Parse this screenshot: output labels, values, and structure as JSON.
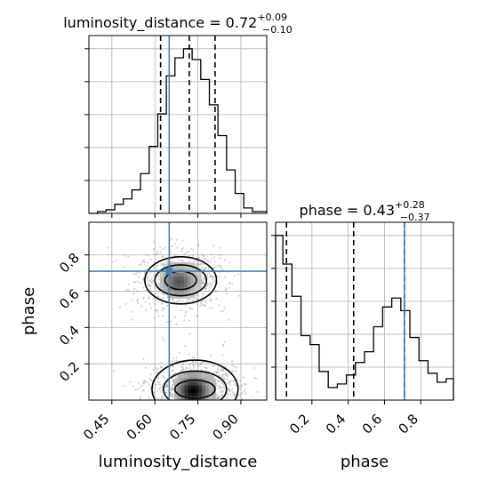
{
  "chart_data": {
    "type": "corner",
    "truth_color": "#4682b4",
    "luminosity_distance": {
      "title": "luminosity_distance = 0.72",
      "title_sup": "+0.09",
      "title_sub": "−0.10",
      "xlabel": "luminosity_distance",
      "xlim": [
        0.37,
        0.99
      ],
      "ticks": [
        0.45,
        0.6,
        0.75,
        0.9
      ],
      "tick_labels": [
        "0.45",
        "0.60",
        "0.75",
        "0.90"
      ],
      "quantiles": [
        0.62,
        0.72,
        0.81
      ],
      "truth": 0.65,
      "hist_edges": [
        0.37,
        0.4,
        0.43,
        0.46,
        0.49,
        0.52,
        0.55,
        0.58,
        0.61,
        0.64,
        0.67,
        0.7,
        0.73,
        0.76,
        0.79,
        0.82,
        0.85,
        0.88,
        0.91,
        0.94,
        0.99
      ],
      "hist_counts": [
        0,
        1,
        2,
        5,
        8,
        13,
        22,
        37,
        55,
        76,
        86,
        91,
        85,
        74,
        60,
        43,
        24,
        11,
        3,
        1
      ]
    },
    "phase": {
      "title": "phase = 0.43",
      "title_sup": "+0.28",
      "title_sub": "−0.37",
      "xlabel": "phase",
      "ylabel": "phase",
      "xlim": [
        0.0,
        0.98
      ],
      "ticks": [
        0.2,
        0.4,
        0.6,
        0.8
      ],
      "tick_labels": [
        "0.2",
        "0.4",
        "0.6",
        "0.8"
      ],
      "quantiles": [
        0.06,
        0.43,
        0.71
      ],
      "truth": 0.71,
      "hist_edges": [
        0.0,
        0.04,
        0.09,
        0.14,
        0.19,
        0.24,
        0.29,
        0.34,
        0.39,
        0.44,
        0.49,
        0.54,
        0.59,
        0.64,
        0.69,
        0.74,
        0.79,
        0.84,
        0.89,
        0.94,
        0.98
      ],
      "hist_counts": [
        92,
        76,
        58,
        36,
        31,
        16,
        7,
        9,
        14,
        21,
        27,
        41,
        52,
        57,
        50,
        35,
        22,
        15,
        10,
        12
      ]
    },
    "scatter_2d": {
      "type": "scatter",
      "x_param": "luminosity_distance",
      "y_param": "phase",
      "clusters": [
        {
          "cx": 0.69,
          "cy": 0.66,
          "sx": 0.075,
          "sy": 0.085,
          "weight": 0.45
        },
        {
          "cx": 0.74,
          "cy": 0.06,
          "sx": 0.085,
          "sy": 0.08,
          "weight": 0.55
        }
      ],
      "contour_levels_1": [
        {
          "cx": 0.69,
          "cy": 0.66,
          "rx": 0.055,
          "ry": 0.05
        },
        {
          "cx": 0.69,
          "cy": 0.66,
          "rx": 0.09,
          "ry": 0.085
        },
        {
          "cx": 0.69,
          "cy": 0.66,
          "rx": 0.125,
          "ry": 0.13
        }
      ],
      "contour_levels_2": [
        {
          "cx": 0.74,
          "cy": 0.06,
          "rx": 0.07,
          "ry": 0.05
        },
        {
          "cx": 0.74,
          "cy": 0.06,
          "rx": 0.11,
          "ry": 0.1
        },
        {
          "cx": 0.74,
          "cy": 0.06,
          "rx": 0.15,
          "ry": 0.16
        }
      ]
    }
  }
}
